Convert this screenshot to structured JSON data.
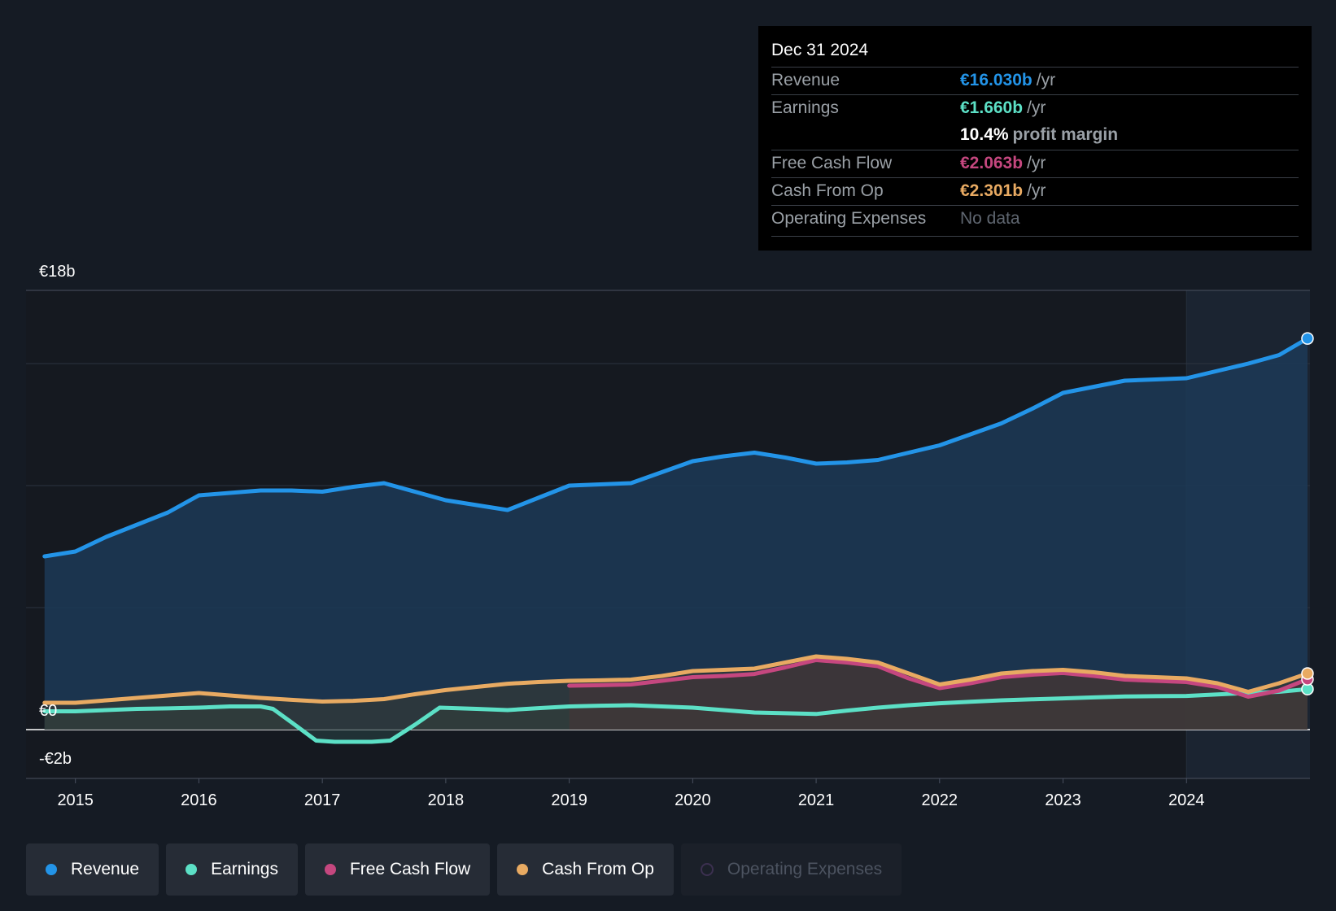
{
  "chart_data": {
    "type": "area",
    "y_axis": {
      "max_label": "€18b",
      "zero_label": "€0",
      "min_label": "-€2b",
      "ylim": [
        -2,
        18
      ]
    },
    "x_ticks": [
      "2015",
      "2016",
      "2017",
      "2018",
      "2019",
      "2020",
      "2021",
      "2022",
      "2023",
      "2024"
    ],
    "xlim": [
      2014.6,
      2025.0
    ],
    "forecast_start": 2024.0,
    "series": [
      {
        "name": "Revenue",
        "color": "#2394e8",
        "fill": "#1c3a57",
        "points": [
          [
            2014.75,
            7.1
          ],
          [
            2015.0,
            7.3
          ],
          [
            2015.25,
            7.9
          ],
          [
            2015.5,
            8.4
          ],
          [
            2015.75,
            8.9
          ],
          [
            2016.0,
            9.6
          ],
          [
            2016.25,
            9.7
          ],
          [
            2016.5,
            9.8
          ],
          [
            2016.75,
            9.8
          ],
          [
            2017.0,
            9.75
          ],
          [
            2017.25,
            9.95
          ],
          [
            2017.5,
            10.1
          ],
          [
            2017.75,
            9.75
          ],
          [
            2018.0,
            9.4
          ],
          [
            2018.25,
            9.2
          ],
          [
            2018.5,
            9.0
          ],
          [
            2018.75,
            9.5
          ],
          [
            2019.0,
            10.0
          ],
          [
            2019.25,
            10.05
          ],
          [
            2019.5,
            10.1
          ],
          [
            2019.75,
            10.55
          ],
          [
            2020.0,
            11.0
          ],
          [
            2020.25,
            11.2
          ],
          [
            2020.5,
            11.35
          ],
          [
            2020.75,
            11.15
          ],
          [
            2021.0,
            10.9
          ],
          [
            2021.25,
            10.95
          ],
          [
            2021.5,
            11.05
          ],
          [
            2021.75,
            11.35
          ],
          [
            2022.0,
            11.65
          ],
          [
            2022.25,
            12.1
          ],
          [
            2022.5,
            12.55
          ],
          [
            2022.75,
            13.15
          ],
          [
            2023.0,
            13.8
          ],
          [
            2023.25,
            14.05
          ],
          [
            2023.5,
            14.3
          ],
          [
            2023.75,
            14.35
          ],
          [
            2024.0,
            14.4
          ],
          [
            2024.25,
            14.7
          ],
          [
            2024.5,
            15.0
          ],
          [
            2024.75,
            15.35
          ],
          [
            2024.98,
            16.03
          ]
        ]
      },
      {
        "name": "Earnings",
        "color": "#5ce0c6",
        "fill": "#2a4547",
        "points": [
          [
            2014.75,
            0.75
          ],
          [
            2015.0,
            0.75
          ],
          [
            2015.25,
            0.8
          ],
          [
            2015.5,
            0.85
          ],
          [
            2015.75,
            0.87
          ],
          [
            2016.0,
            0.9
          ],
          [
            2016.25,
            0.95
          ],
          [
            2016.5,
            0.95
          ],
          [
            2016.6,
            0.85
          ],
          [
            2016.75,
            0.3
          ],
          [
            2016.95,
            -0.45
          ],
          [
            2017.1,
            -0.5
          ],
          [
            2017.4,
            -0.5
          ],
          [
            2017.55,
            -0.45
          ],
          [
            2017.75,
            0.2
          ],
          [
            2017.95,
            0.9
          ],
          [
            2018.25,
            0.85
          ],
          [
            2018.5,
            0.8
          ],
          [
            2018.75,
            0.88
          ],
          [
            2019.0,
            0.95
          ],
          [
            2019.25,
            0.98
          ],
          [
            2019.5,
            1.0
          ],
          [
            2019.75,
            0.95
          ],
          [
            2020.0,
            0.9
          ],
          [
            2020.25,
            0.8
          ],
          [
            2020.5,
            0.7
          ],
          [
            2020.75,
            0.67
          ],
          [
            2021.0,
            0.64
          ],
          [
            2021.25,
            0.78
          ],
          [
            2021.5,
            0.9
          ],
          [
            2021.75,
            1.0
          ],
          [
            2022.0,
            1.08
          ],
          [
            2022.25,
            1.14
          ],
          [
            2022.5,
            1.2
          ],
          [
            2022.75,
            1.24
          ],
          [
            2023.0,
            1.28
          ],
          [
            2023.25,
            1.32
          ],
          [
            2023.5,
            1.36
          ],
          [
            2023.75,
            1.37
          ],
          [
            2024.0,
            1.38
          ],
          [
            2024.25,
            1.44
          ],
          [
            2024.5,
            1.5
          ],
          [
            2024.75,
            1.55
          ],
          [
            2024.98,
            1.66
          ]
        ]
      },
      {
        "name": "Free Cash Flow",
        "color": "#c5477f",
        "fill": "#5a2d3e",
        "points": [
          [
            2019.0,
            1.8
          ],
          [
            2019.25,
            1.82
          ],
          [
            2019.5,
            1.85
          ],
          [
            2019.75,
            2.0
          ],
          [
            2020.0,
            2.15
          ],
          [
            2020.25,
            2.2
          ],
          [
            2020.5,
            2.28
          ],
          [
            2020.75,
            2.55
          ],
          [
            2021.0,
            2.85
          ],
          [
            2021.25,
            2.75
          ],
          [
            2021.5,
            2.6
          ],
          [
            2021.75,
            2.1
          ],
          [
            2022.0,
            1.7
          ],
          [
            2022.25,
            1.9
          ],
          [
            2022.5,
            2.15
          ],
          [
            2022.75,
            2.25
          ],
          [
            2023.0,
            2.32
          ],
          [
            2023.25,
            2.2
          ],
          [
            2023.5,
            2.05
          ],
          [
            2023.75,
            2.0
          ],
          [
            2024.0,
            1.95
          ],
          [
            2024.25,
            1.75
          ],
          [
            2024.5,
            1.35
          ],
          [
            2024.75,
            1.6
          ],
          [
            2024.98,
            2.063
          ]
        ]
      },
      {
        "name": "Cash From Op",
        "color": "#e8aa62",
        "fill": "#3a3a30",
        "points": [
          [
            2014.75,
            1.1
          ],
          [
            2015.0,
            1.1
          ],
          [
            2015.25,
            1.2
          ],
          [
            2015.5,
            1.3
          ],
          [
            2015.75,
            1.4
          ],
          [
            2016.0,
            1.5
          ],
          [
            2016.25,
            1.4
          ],
          [
            2016.5,
            1.3
          ],
          [
            2016.75,
            1.22
          ],
          [
            2017.0,
            1.15
          ],
          [
            2017.25,
            1.18
          ],
          [
            2017.5,
            1.25
          ],
          [
            2017.75,
            1.45
          ],
          [
            2018.0,
            1.62
          ],
          [
            2018.25,
            1.75
          ],
          [
            2018.5,
            1.88
          ],
          [
            2018.75,
            1.95
          ],
          [
            2019.0,
            2.0
          ],
          [
            2019.25,
            2.02
          ],
          [
            2019.5,
            2.05
          ],
          [
            2019.75,
            2.2
          ],
          [
            2020.0,
            2.4
          ],
          [
            2020.25,
            2.45
          ],
          [
            2020.5,
            2.5
          ],
          [
            2020.75,
            2.75
          ],
          [
            2021.0,
            3.0
          ],
          [
            2021.25,
            2.9
          ],
          [
            2021.5,
            2.75
          ],
          [
            2021.75,
            2.3
          ],
          [
            2022.0,
            1.85
          ],
          [
            2022.25,
            2.05
          ],
          [
            2022.5,
            2.3
          ],
          [
            2022.75,
            2.4
          ],
          [
            2023.0,
            2.45
          ],
          [
            2023.25,
            2.35
          ],
          [
            2023.5,
            2.2
          ],
          [
            2023.75,
            2.15
          ],
          [
            2024.0,
            2.1
          ],
          [
            2024.25,
            1.9
          ],
          [
            2024.5,
            1.55
          ],
          [
            2024.75,
            1.9
          ],
          [
            2024.98,
            2.301
          ]
        ]
      }
    ]
  },
  "tooltip": {
    "date": "Dec 31 2024",
    "rows": [
      {
        "label": "Revenue",
        "value": "€16.030b",
        "unit": "/yr",
        "color": "#2394e8"
      },
      {
        "label": "Earnings",
        "value": "€1.660b",
        "unit": "/yr",
        "color": "#5ce0c6"
      },
      {
        "label": "",
        "value": "10.4%",
        "unit": "profit margin",
        "color": "#ffffff"
      },
      {
        "label": "Free Cash Flow",
        "value": "€2.063b",
        "unit": "/yr",
        "color": "#c5477f"
      },
      {
        "label": "Cash From Op",
        "value": "€2.301b",
        "unit": "/yr",
        "color": "#e8aa62"
      },
      {
        "label": "Operating Expenses",
        "value": "No data",
        "unit": "",
        "color": "#5f6670"
      }
    ]
  },
  "legend": [
    {
      "label": "Revenue",
      "color": "#2394e8",
      "enabled": true
    },
    {
      "label": "Earnings",
      "color": "#5ce0c6",
      "enabled": true
    },
    {
      "label": "Free Cash Flow",
      "color": "#c5477f",
      "enabled": true
    },
    {
      "label": "Cash From Op",
      "color": "#e8aa62",
      "enabled": true
    },
    {
      "label": "Operating Expenses",
      "color": "#3c3050",
      "enabled": false
    }
  ]
}
